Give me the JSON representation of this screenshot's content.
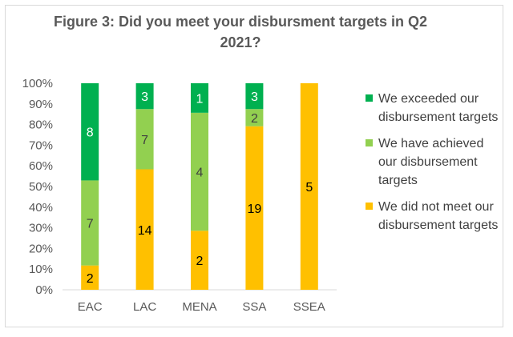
{
  "chart_data": {
    "type": "bar",
    "stacked": "percent",
    "title": "Figure 3: Did you meet your disbursment targets in Q2 2021?",
    "xlabel": "",
    "ylabel": "",
    "ylim": [
      0,
      100
    ],
    "yticks": [
      "0%",
      "10%",
      "20%",
      "30%",
      "40%",
      "50%",
      "60%",
      "70%",
      "80%",
      "90%",
      "100%"
    ],
    "categories": [
      "EAC",
      "LAC",
      "MENA",
      "SSA",
      "SSEA"
    ],
    "grid": false,
    "legend_position": "right",
    "series": [
      {
        "name": "We did not meet our disbursement targets",
        "color": "#FFC000",
        "label_color": "#000000",
        "values": [
          2,
          14,
          2,
          19,
          5
        ]
      },
      {
        "name": "We have achieved our disbursement targets",
        "color": "#92D050",
        "label_color": "#404040",
        "values": [
          7,
          7,
          4,
          2,
          0
        ]
      },
      {
        "name": "We exceeded our disbursement targets",
        "color": "#00B050",
        "label_color": "#ffffff",
        "values": [
          8,
          3,
          1,
          3,
          0
        ]
      }
    ]
  }
}
